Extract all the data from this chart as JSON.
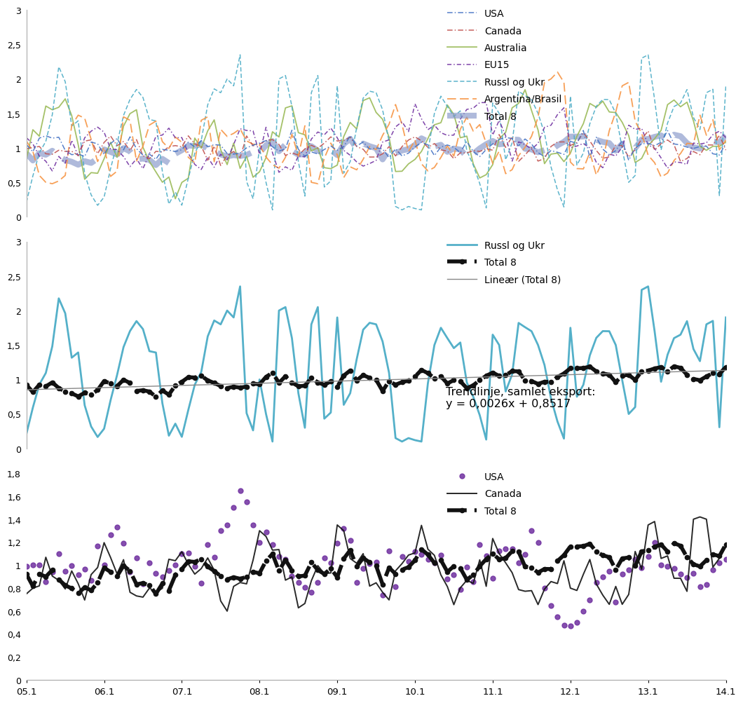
{
  "n_months": 109,
  "yticks_top": [
    0,
    0.5,
    1.0,
    1.5,
    2.0,
    2.5,
    3.0
  ],
  "yticks_mid": [
    0,
    0.5,
    1.0,
    1.5,
    2.0,
    2.5,
    3.0
  ],
  "yticks_bot": [
    0,
    0.2,
    0.4,
    0.6,
    0.8,
    1.0,
    1.2,
    1.4,
    1.6,
    1.8
  ],
  "xtick_labels": [
    "05.1",
    "06.1",
    "07.1",
    "08.1",
    "09.1",
    "10.1",
    "11.1",
    "12.1",
    "13.1",
    "14.1"
  ],
  "xtick_positions": [
    0,
    12,
    24,
    36,
    48,
    60,
    72,
    84,
    96,
    108
  ],
  "trend_label": "Trendlinje, samlet eksport:\ny = 0,0026x + 0,8517",
  "trend_slope": 0.0026,
  "trend_intercept": 0.8517,
  "colors": {
    "USA": "#4472C4",
    "Canada": "#C0504D",
    "Australia": "#9BBB59",
    "EU15": "#7030A0",
    "RusslUkr_top": "#4BACC6",
    "RusslUkr_mid": "#4BACC6",
    "ArgBras": "#F79646",
    "Total8_top": "#8496C8",
    "Total8_mid": "#111111",
    "linear": "#888888",
    "USA_bot": "#7030A0",
    "Canada_bot": "#111111",
    "Total8_bot": "#111111"
  },
  "background": "#ffffff"
}
